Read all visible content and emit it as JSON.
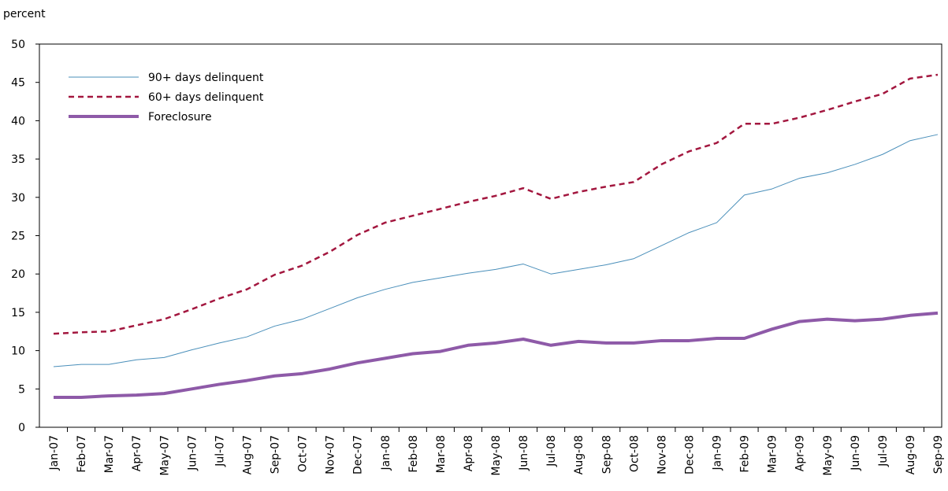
{
  "chart_data": {
    "type": "line",
    "y_label": "percent",
    "categories": [
      "Jan-07",
      "Feb-07",
      "Mar-07",
      "Apr-07",
      "May-07",
      "Jun-07",
      "Jul-07",
      "Aug-07",
      "Sep-07",
      "Oct-07",
      "Nov-07",
      "Dec-07",
      "Jan-08",
      "Feb-08",
      "Mar-08",
      "Apr-08",
      "May-08",
      "Jun-08",
      "Jul-08",
      "Aug-08",
      "Sep-08",
      "Oct-08",
      "Nov-08",
      "Dec-08",
      "Jan-09",
      "Feb-09",
      "Mar-09",
      "Apr-09",
      "May-09",
      "Jun-09",
      "Jul-09",
      "Aug-09",
      "Sep-09"
    ],
    "series": [
      {
        "name": "90+ days delinquent",
        "color": "#4a8fba",
        "style": "solid",
        "width": 1,
        "values": [
          7.9,
          8.2,
          8.2,
          8.8,
          9.1,
          10.1,
          11.0,
          11.8,
          13.2,
          14.1,
          15.5,
          16.9,
          18.0,
          18.9,
          19.5,
          20.1,
          20.6,
          21.3,
          20.0,
          20.6,
          21.2,
          22.0,
          23.7,
          25.4,
          26.7,
          30.3,
          31.1,
          32.5,
          33.2,
          34.3,
          35.6,
          37.4,
          38.2
        ]
      },
      {
        "name": "60+ days delinquent",
        "color": "#a3173f",
        "style": "dashed",
        "width": 2.5,
        "values": [
          12.2,
          12.4,
          12.5,
          13.3,
          14.1,
          15.4,
          16.8,
          18.0,
          19.9,
          21.1,
          22.9,
          25.1,
          26.7,
          27.6,
          28.5,
          29.4,
          30.2,
          31.2,
          29.8,
          30.7,
          31.4,
          32.0,
          34.3,
          36.0,
          37.1,
          39.6,
          39.6,
          40.4,
          41.4,
          42.5,
          43.5,
          45.5,
          46.0
        ]
      },
      {
        "name": "Foreclosure",
        "color": "#8e5aa8",
        "style": "solid",
        "width": 4,
        "values": [
          3.9,
          3.9,
          4.1,
          4.2,
          4.4,
          5.0,
          5.6,
          6.1,
          6.7,
          7.0,
          7.6,
          8.4,
          9.0,
          9.6,
          9.9,
          10.7,
          11.0,
          11.5,
          10.7,
          11.2,
          11.0,
          11.0,
          11.3,
          11.3,
          11.6,
          11.6,
          12.8,
          13.8,
          14.1,
          13.9,
          14.1,
          14.6,
          14.9
        ]
      }
    ],
    "ylim": [
      0,
      50
    ],
    "yticks": [
      0,
      5,
      10,
      15,
      20,
      25,
      30,
      35,
      40,
      45,
      50
    ],
    "legend": "upper left"
  }
}
